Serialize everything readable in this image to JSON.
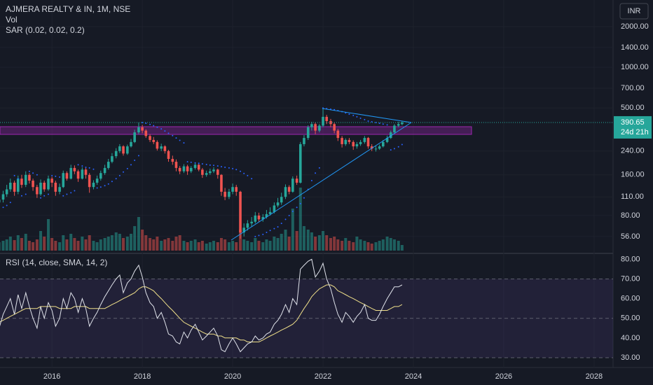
{
  "chart_data": {
    "type": "candlestick",
    "title": "AJMERA REALTY & IN, 1M, NSE",
    "volume_label": "Vol",
    "sar_label": "SAR (0.02, 0.02, 0.2)",
    "currency": "INR",
    "countdown": "24d 21h",
    "log_scale": true,
    "grid": true,
    "up_color": "#26a69a",
    "down_color": "#ef5350",
    "sar_color": "#2962ff",
    "xlim": [
      2014.85,
      2028.42
    ],
    "xticks": [
      2016,
      2018,
      2020,
      2022,
      2024,
      2026,
      2028
    ],
    "ylim": [
      43,
      3146
    ],
    "yticks": [
      {
        "value": 2000,
        "label": "2000.00"
      },
      {
        "value": 1400,
        "label": "1400.00"
      },
      {
        "value": 1000,
        "label": "1000.00"
      },
      {
        "value": 700,
        "label": "700.00"
      },
      {
        "value": 500,
        "label": "500.00"
      },
      {
        "value": 240,
        "label": "240.00"
      },
      {
        "value": 160,
        "label": "160.00"
      },
      {
        "value": 110,
        "label": "110.00"
      },
      {
        "value": 80,
        "label": "80.00"
      },
      {
        "value": 56,
        "label": "56.00"
      }
    ],
    "x": [
      2014.83,
      2014.92,
      2015.0,
      2015.08,
      2015.17,
      2015.25,
      2015.33,
      2015.42,
      2015.5,
      2015.58,
      2015.67,
      2015.75,
      2015.83,
      2015.92,
      2016.0,
      2016.08,
      2016.17,
      2016.25,
      2016.33,
      2016.42,
      2016.5,
      2016.58,
      2016.67,
      2016.75,
      2016.83,
      2016.92,
      2017.0,
      2017.08,
      2017.17,
      2017.25,
      2017.33,
      2017.42,
      2017.5,
      2017.58,
      2017.67,
      2017.75,
      2017.83,
      2017.92,
      2018.0,
      2018.08,
      2018.17,
      2018.25,
      2018.33,
      2018.42,
      2018.5,
      2018.58,
      2018.67,
      2018.75,
      2018.83,
      2018.92,
      2019.0,
      2019.08,
      2019.17,
      2019.25,
      2019.33,
      2019.42,
      2019.5,
      2019.58,
      2019.67,
      2019.75,
      2019.83,
      2019.92,
      2020.0,
      2020.08,
      2020.17,
      2020.25,
      2020.33,
      2020.42,
      2020.5,
      2020.58,
      2020.67,
      2020.75,
      2020.83,
      2020.92,
      2021.0,
      2021.08,
      2021.17,
      2021.25,
      2021.33,
      2021.42,
      2021.5,
      2021.58,
      2021.67,
      2021.75,
      2021.83,
      2021.92,
      2022.0,
      2022.08,
      2022.17,
      2022.25,
      2022.33,
      2022.42,
      2022.5,
      2022.58,
      2022.67,
      2022.75,
      2022.83,
      2022.92,
      2023.0,
      2023.08,
      2023.17,
      2023.25,
      2023.33,
      2023.42,
      2023.5,
      2023.58,
      2023.67,
      2023.75
    ],
    "open": [
      100,
      105,
      115,
      125,
      140,
      120,
      150,
      135,
      160,
      145,
      130,
      115,
      140,
      125,
      150,
      140,
      120,
      130,
      165,
      150,
      180,
      170,
      150,
      175,
      160,
      130,
      140,
      150,
      165,
      180,
      200,
      220,
      240,
      260,
      230,
      260,
      280,
      330,
      360,
      340,
      310,
      290,
      280,
      250,
      260,
      240,
      210,
      200,
      180,
      170,
      185,
      170,
      180,
      190,
      175,
      160,
      165,
      170,
      175,
      160,
      120,
      110,
      120,
      130,
      120,
      60,
      65,
      70,
      72,
      80,
      75,
      78,
      82,
      85,
      95,
      100,
      110,
      130,
      120,
      150,
      140,
      270,
      300,
      360,
      380,
      340,
      370,
      430,
      400,
      380,
      340,
      300,
      270,
      290,
      280,
      260,
      270,
      280,
      300,
      260,
      250,
      250,
      260,
      280,
      300,
      330,
      370,
      380
    ],
    "high": [
      112,
      122,
      135,
      150,
      145,
      158,
      160,
      170,
      165,
      150,
      135,
      148,
      145,
      158,
      155,
      145,
      138,
      172,
      170,
      190,
      188,
      175,
      182,
      180,
      165,
      146,
      158,
      172,
      190,
      210,
      232,
      252,
      270,
      265,
      268,
      295,
      345,
      390,
      375,
      348,
      320,
      305,
      288,
      272,
      265,
      245,
      222,
      208,
      186,
      192,
      190,
      186,
      198,
      195,
      180,
      172,
      178,
      182,
      178,
      162,
      128,
      126,
      138,
      135,
      122,
      70,
      74,
      78,
      85,
      84,
      82,
      88,
      92,
      100,
      108,
      118,
      136,
      134,
      156,
      158,
      280,
      315,
      372,
      395,
      390,
      380,
      500,
      445,
      415,
      390,
      350,
      310,
      298,
      300,
      288,
      280,
      290,
      310,
      305,
      270,
      262,
      268,
      290,
      312,
      340,
      380,
      395,
      400
    ],
    "low": [
      95,
      100,
      110,
      120,
      112,
      115,
      128,
      130,
      138,
      122,
      108,
      112,
      120,
      122,
      130,
      112,
      115,
      128,
      145,
      148,
      162,
      142,
      148,
      150,
      118,
      125,
      135,
      145,
      160,
      175,
      195,
      212,
      232,
      222,
      225,
      255,
      275,
      320,
      325,
      300,
      280,
      270,
      242,
      240,
      230,
      200,
      190,
      170,
      162,
      165,
      160,
      165,
      175,
      170,
      152,
      155,
      160,
      165,
      150,
      112,
      104,
      106,
      115,
      112,
      54,
      56,
      62,
      66,
      70,
      72,
      72,
      76,
      80,
      83,
      92,
      96,
      106,
      115,
      118,
      135,
      138,
      260,
      290,
      340,
      320,
      330,
      360,
      380,
      360,
      325,
      285,
      255,
      262,
      270,
      245,
      250,
      262,
      272,
      250,
      240,
      238,
      245,
      255,
      275,
      295,
      325,
      360,
      372
    ],
    "close": [
      105,
      115,
      125,
      140,
      120,
      150,
      135,
      160,
      145,
      130,
      115,
      140,
      125,
      150,
      140,
      120,
      130,
      165,
      150,
      180,
      170,
      150,
      175,
      160,
      130,
      140,
      150,
      165,
      180,
      200,
      220,
      240,
      260,
      230,
      260,
      280,
      330,
      360,
      340,
      310,
      290,
      280,
      250,
      260,
      240,
      210,
      200,
      180,
      170,
      185,
      170,
      180,
      190,
      175,
      160,
      165,
      170,
      175,
      160,
      120,
      110,
      120,
      130,
      120,
      60,
      65,
      70,
      72,
      80,
      75,
      78,
      82,
      85,
      95,
      100,
      110,
      130,
      120,
      150,
      140,
      270,
      300,
      360,
      380,
      340,
      370,
      430,
      400,
      380,
      340,
      300,
      270,
      290,
      280,
      260,
      270,
      280,
      300,
      260,
      250,
      250,
      260,
      280,
      300,
      330,
      370,
      380,
      390.65
    ],
    "volume": [
      12,
      14,
      16,
      20,
      15,
      22,
      18,
      24,
      14,
      12,
      16,
      28,
      20,
      45,
      18,
      14,
      12,
      22,
      16,
      24,
      18,
      14,
      20,
      16,
      22,
      14,
      12,
      16,
      18,
      20,
      22,
      26,
      24,
      18,
      20,
      24,
      35,
      48,
      30,
      22,
      18,
      16,
      20,
      14,
      16,
      18,
      14,
      20,
      22,
      14,
      12,
      14,
      16,
      12,
      14,
      10,
      12,
      14,
      12,
      18,
      16,
      12,
      14,
      12,
      30,
      16,
      14,
      12,
      18,
      14,
      12,
      16,
      14,
      20,
      18,
      24,
      30,
      20,
      60,
      28,
      90,
      35,
      30,
      26,
      20,
      22,
      28,
      22,
      18,
      20,
      16,
      14,
      18,
      14,
      12,
      20,
      16,
      14,
      12,
      10,
      12,
      14,
      16,
      20,
      18,
      16,
      14,
      8
    ],
    "sar": [
      90,
      92,
      95,
      100,
      158,
      150,
      112,
      115,
      170,
      165,
      160,
      108,
      112,
      115,
      158,
      156,
      154,
      112,
      115,
      118,
      122,
      190,
      186,
      182,
      180,
      176,
      128,
      130,
      133,
      137,
      143,
      150,
      158,
      168,
      178,
      190,
      205,
      222,
      390,
      385,
      378,
      370,
      360,
      350,
      338,
      325,
      312,
      300,
      288,
      276,
      200,
      198,
      196,
      195,
      193,
      191,
      189,
      188,
      186,
      184,
      182,
      180,
      178,
      175,
      170,
      164,
      158,
      150,
      56,
      57,
      58,
      60,
      62,
      64,
      66,
      70,
      75,
      80,
      86,
      92,
      98,
      108,
      125,
      145,
      165,
      180,
      500,
      495,
      490,
      485,
      478,
      470,
      460,
      450,
      440,
      430,
      420,
      410,
      400,
      395,
      390,
      385,
      380,
      375,
      245,
      250,
      258,
      268
    ],
    "rsi": {
      "title": "RSI (14, close, SMA, 14, 2)",
      "color": "#e0e3eb",
      "ma_color": "#f0e08a",
      "ylim": [
        25,
        83
      ],
      "yticks": [
        {
          "value": 80,
          "label": "80.00"
        },
        {
          "value": 70,
          "label": "70.00"
        },
        {
          "value": 60,
          "label": "60.00"
        },
        {
          "value": 50,
          "label": "50.00"
        },
        {
          "value": 40,
          "label": "40.00"
        },
        {
          "value": 30,
          "label": "30.00"
        }
      ],
      "bands": [
        70,
        50,
        30
      ],
      "values": [
        45,
        52,
        56,
        60,
        52,
        62,
        55,
        63,
        56,
        50,
        45,
        56,
        50,
        58,
        54,
        46,
        50,
        60,
        55,
        63,
        60,
        53,
        60,
        55,
        46,
        50,
        53,
        57,
        61,
        64,
        67,
        70,
        72,
        63,
        68,
        70,
        74,
        77,
        71,
        63,
        58,
        56,
        50,
        53,
        48,
        42,
        41,
        38,
        37,
        43,
        40,
        44,
        47,
        43,
        39,
        41,
        43,
        45,
        41,
        34,
        33,
        37,
        40,
        37,
        33,
        35,
        37,
        38,
        41,
        39,
        40,
        42,
        43,
        47,
        49,
        52,
        57,
        53,
        60,
        57,
        75,
        77,
        79,
        80,
        71,
        74,
        78,
        70,
        65,
        58,
        52,
        48,
        53,
        51,
        48,
        51,
        53,
        57,
        50,
        49,
        49,
        52,
        56,
        60,
        63,
        66,
        66,
        67
      ],
      "ma_values": [
        48,
        49,
        50,
        51,
        52,
        53,
        54,
        55,
        55,
        55,
        55,
        56,
        56,
        56,
        56,
        56,
        55,
        55,
        55,
        55,
        56,
        56,
        56,
        56,
        55,
        55,
        55,
        55,
        55,
        56,
        57,
        58,
        59,
        60,
        61,
        62,
        63,
        65,
        66,
        66,
        65,
        64,
        62,
        60,
        58,
        56,
        54,
        52,
        50,
        48,
        47,
        46,
        45,
        44,
        43,
        42,
        42,
        42,
        41,
        41,
        40,
        40,
        40,
        40,
        39,
        39,
        38,
        38,
        38,
        38,
        39,
        40,
        41,
        42,
        43,
        44,
        45,
        46,
        47,
        49,
        52,
        55,
        58,
        61,
        63,
        65,
        66,
        67,
        67,
        66,
        64,
        63,
        62,
        61,
        60,
        59,
        58,
        57,
        56,
        55,
        54,
        54,
        54,
        54,
        55,
        56,
        56,
        57
      ]
    }
  }
}
